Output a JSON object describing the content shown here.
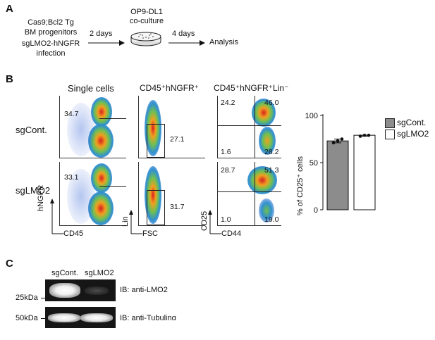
{
  "panelA": {
    "letter": "A",
    "line1": "Cas9;Bcl2 Tg",
    "line2": "BM progenitors",
    "line3": "sgLMO2-hNGFR",
    "line4": "infection",
    "step1": "2 days",
    "dish_line1": "OP9-DL1",
    "dish_line2": "co-culture",
    "step2": "4 days",
    "final": "Analysis"
  },
  "panelB": {
    "letter": "B",
    "col1": "Single cells",
    "col2": "CD45⁺hNGFR⁺",
    "col3": "CD45⁺hNGFR⁺Lin⁻",
    "row1": "sgCont.",
    "row2": "sgLMO2",
    "plots": {
      "r1c1": "34.7",
      "r1c2": "27.1",
      "r1c3_tl": "24.2",
      "r1c3_tr": "46.0",
      "r1c3_bl": "1.6",
      "r1c3_br": "28.2",
      "r2c1": "33.1",
      "r2c2": "31.7",
      "r2c3_tl": "28.7",
      "r2c3_tr": "51.3",
      "r2c3_bl": "1.0",
      "r2c3_br": "19.0"
    },
    "axes": {
      "c1_y": "hNGFR",
      "c1_x": "CD45",
      "c2_y": "Lin",
      "c2_x": "FSC",
      "c3_y": "CD25",
      "c3_x": "CD44"
    }
  },
  "chart_data": {
    "type": "bar",
    "categories": [
      "sgCont.",
      "sgLMO2"
    ],
    "values": [
      73,
      79
    ],
    "points": [
      [
        71,
        73,
        75
      ],
      [
        78,
        79,
        79
      ]
    ],
    "colors": [
      "#8c8c8c",
      "#ffffff"
    ],
    "ylabel": "% of CD25⁺ cells",
    "ylim": [
      0,
      100
    ],
    "yticks": [
      "0",
      "50",
      "100"
    ],
    "legend": [
      "sgCont.",
      "sgLMO2"
    ],
    "legend_position": "top-right"
  },
  "panelC": {
    "letter": "C",
    "lane1": "sgCont.",
    "lane2": "sgLMO2",
    "mw1": "25kDa",
    "mw2": "50kDa",
    "ib1": "IB: anti-LMO2",
    "ib2": "IB: anti-Tubulinα"
  }
}
